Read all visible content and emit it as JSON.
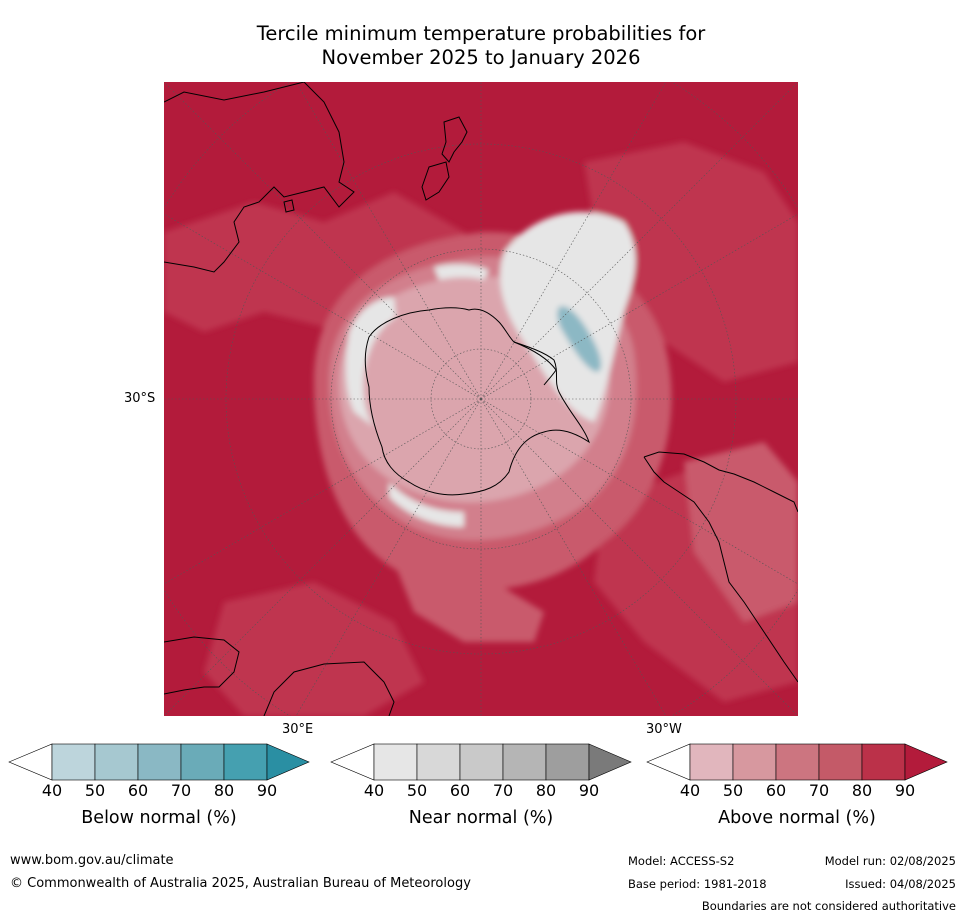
{
  "title": {
    "line1": "Tercile minimum temperature probabilities for",
    "line2": "November 2025 to January 2026"
  },
  "map": {
    "projection": "south polar stereographic",
    "labels": {
      "lat": "30°S",
      "lon_east": "30°E",
      "lon_west": "30°W"
    },
    "colors": {
      "above_90": "#b31b3b",
      "above_80": "#bf3550",
      "above_70": "#c95a6c",
      "above_60": "#d27f8c",
      "above_50": "#dba5ad",
      "below_60": "#8cb8c4",
      "near_40": "#e6e6e6",
      "coastline": "#000000",
      "gridline": "#555555"
    }
  },
  "legend": {
    "below": {
      "label": "Below normal (%)",
      "ticks": [
        "40",
        "50",
        "60",
        "70",
        "80",
        "90"
      ],
      "colors": [
        "#ffffff",
        "#bdd5dc",
        "#a6c8d0",
        "#8ab8c4",
        "#6aabb8",
        "#45a0b0",
        "#2a8fa3"
      ]
    },
    "near": {
      "label": "Near normal (%)",
      "ticks": [
        "40",
        "50",
        "60",
        "70",
        "80",
        "90"
      ],
      "colors": [
        "#ffffff",
        "#e6e6e6",
        "#d8d8d8",
        "#c9c9c9",
        "#b5b5b5",
        "#9e9e9e",
        "#7a7a7a"
      ]
    },
    "above": {
      "label": "Above normal (%)",
      "ticks": [
        "40",
        "50",
        "60",
        "70",
        "80",
        "90"
      ],
      "colors": [
        "#ffffff",
        "#e1b6bd",
        "#d7989f",
        "#cc7580",
        "#c45a68",
        "#bb3149",
        "#b31b3b"
      ]
    }
  },
  "footer": {
    "website": "www.bom.gov.au/climate",
    "copyright": "© Commonwealth of Australia 2025, Australian Bureau of Meteorology",
    "model": "Model: ACCESS-S2",
    "model_run": "Model run: 02/08/2025",
    "base_period": "Base period: 1981-2018",
    "issued": "Issued: 04/08/2025",
    "disclaimer": "Boundaries are not considered authoritative"
  }
}
